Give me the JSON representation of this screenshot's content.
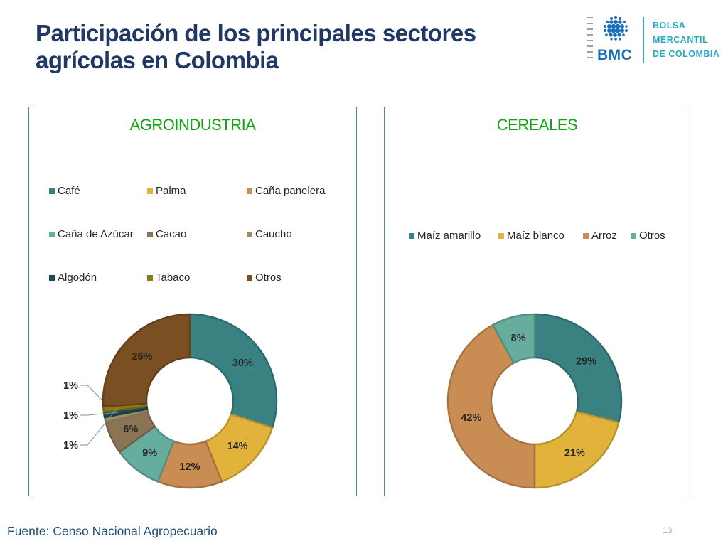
{
  "slide": {
    "title_lines": [
      "Participación de los principales sectores",
      "agrícolas en Colombia"
    ],
    "source": "Fuente: Censo Nacional Agropecuario",
    "page_number": "13"
  },
  "logo": {
    "abbr": "BMC",
    "text_lines": [
      "BOLSA",
      "MERCANTIL",
      "DE COLOMBIA"
    ]
  },
  "chart_data": [
    {
      "type": "pie",
      "title": "AGROINDUSTRIA",
      "legend_position": "top",
      "categories": [
        "Café",
        "Palma",
        "Caña panelera",
        "Caña de Azúcar",
        "Cacao",
        "Caucho",
        "Algodón",
        "Tabaco",
        "Otros"
      ],
      "values": [
        30,
        14,
        12,
        9,
        6,
        1,
        1,
        1,
        26
      ],
      "data_labels": [
        "30%",
        "14%",
        "12%",
        "9%",
        "6%",
        "1%",
        "1%",
        "1%",
        "26%"
      ],
      "colors": [
        "#3a8282",
        "#e2b33a",
        "#c98c52",
        "#66ad9d",
        "#8b7355",
        "#9c8b67",
        "#1a4b52",
        "#8b7a1e",
        "#7a4f22"
      ]
    },
    {
      "type": "pie",
      "title": "CEREALES",
      "legend_position": "top",
      "categories": [
        "Maíz amarillo",
        "Maíz blanco",
        "Arroz",
        "Otros"
      ],
      "values": [
        29,
        21,
        42,
        8
      ],
      "data_labels": [
        "29%",
        "21%",
        "42%",
        "8%"
      ],
      "colors": [
        "#3a8282",
        "#e2b33a",
        "#c98c52",
        "#66ad9d"
      ]
    }
  ]
}
